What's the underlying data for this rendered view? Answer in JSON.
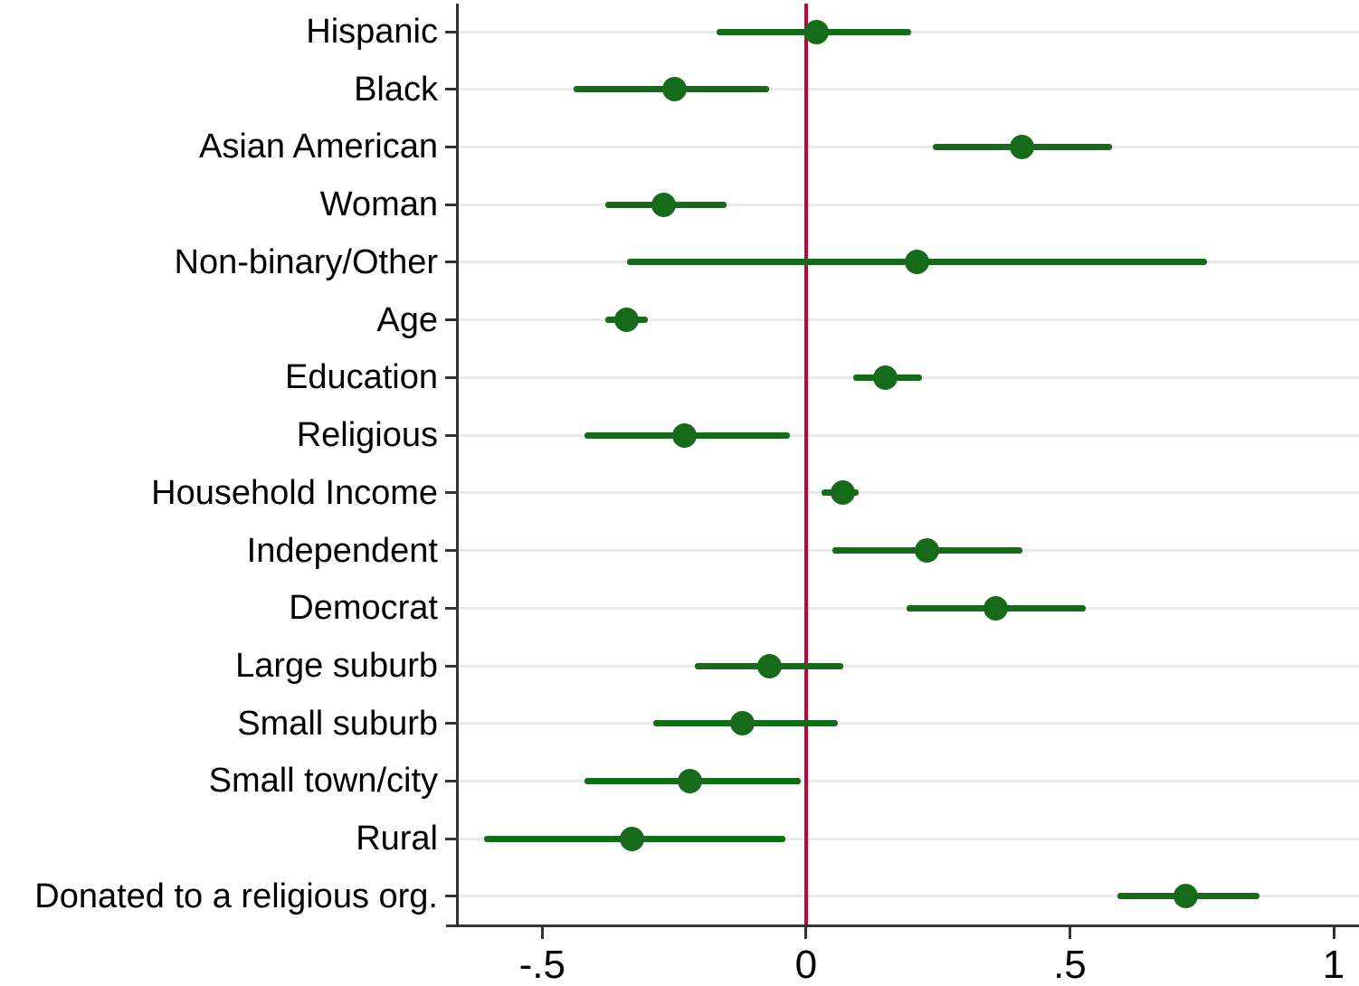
{
  "chart_data": {
    "type": "scatter",
    "subtype": "coefficient-plot-with-error-bars",
    "orientation": "horizontal",
    "title": "",
    "xlabel": "",
    "ylabel": "",
    "legend": "none",
    "grid": "horizontal-per-category",
    "xlim": [
      -0.66,
      1.048
    ],
    "x_ticks": [
      {
        "value": -0.5,
        "label": "-.5"
      },
      {
        "value": 0,
        "label": "0"
      },
      {
        "value": 0.5,
        "label": ".5"
      },
      {
        "value": 1,
        "label": "1"
      }
    ],
    "reference_line": {
      "value": 0
    },
    "categories": [
      "Hispanic",
      "Black",
      "Asian American",
      "Woman",
      "Non-binary/Other",
      "Age",
      "Education",
      "Religious",
      "Household Income",
      "Independent",
      "Democrat",
      "Large suburb",
      "Small suburb",
      "Small town/city",
      "Rural",
      "Donated to a religious org."
    ],
    "points": [
      {
        "category": "Hispanic",
        "estimate": 0.02,
        "ci_low": -0.17,
        "ci_high": 0.2
      },
      {
        "category": "Black",
        "estimate": -0.25,
        "ci_low": -0.44,
        "ci_high": -0.07
      },
      {
        "category": "Asian American",
        "estimate": 0.41,
        "ci_low": 0.24,
        "ci_high": 0.58
      },
      {
        "category": "Woman",
        "estimate": -0.27,
        "ci_low": -0.38,
        "ci_high": -0.15
      },
      {
        "category": "Non-binary/Other",
        "estimate": 0.21,
        "ci_low": -0.34,
        "ci_high": 0.76
      },
      {
        "category": "Age",
        "estimate": -0.34,
        "ci_low": -0.38,
        "ci_high": -0.3
      },
      {
        "category": "Education",
        "estimate": 0.15,
        "ci_low": 0.09,
        "ci_high": 0.22
      },
      {
        "category": "Religious",
        "estimate": -0.23,
        "ci_low": -0.42,
        "ci_high": -0.03
      },
      {
        "category": "Household Income",
        "estimate": 0.07,
        "ci_low": 0.03,
        "ci_high": 0.1
      },
      {
        "category": "Independent",
        "estimate": 0.23,
        "ci_low": 0.05,
        "ci_high": 0.41
      },
      {
        "category": "Democrat",
        "estimate": 0.36,
        "ci_low": 0.19,
        "ci_high": 0.53
      },
      {
        "category": "Large suburb",
        "estimate": -0.07,
        "ci_low": -0.21,
        "ci_high": 0.07
      },
      {
        "category": "Small suburb",
        "estimate": -0.12,
        "ci_low": -0.29,
        "ci_high": 0.06
      },
      {
        "category": "Small town/city",
        "estimate": -0.22,
        "ci_low": -0.42,
        "ci_high": -0.01
      },
      {
        "category": "Rural",
        "estimate": -0.33,
        "ci_low": -0.61,
        "ci_high": -0.04
      },
      {
        "category": "Donated to a religious org.",
        "estimate": 0.72,
        "ci_low": 0.59,
        "ci_high": 0.86
      }
    ],
    "colors": {
      "marker": "#156b19",
      "ci": "#156b19",
      "reference": "#c10534",
      "axis": "#333333",
      "gridline": "#e9e9e9",
      "text": "#000000"
    }
  }
}
